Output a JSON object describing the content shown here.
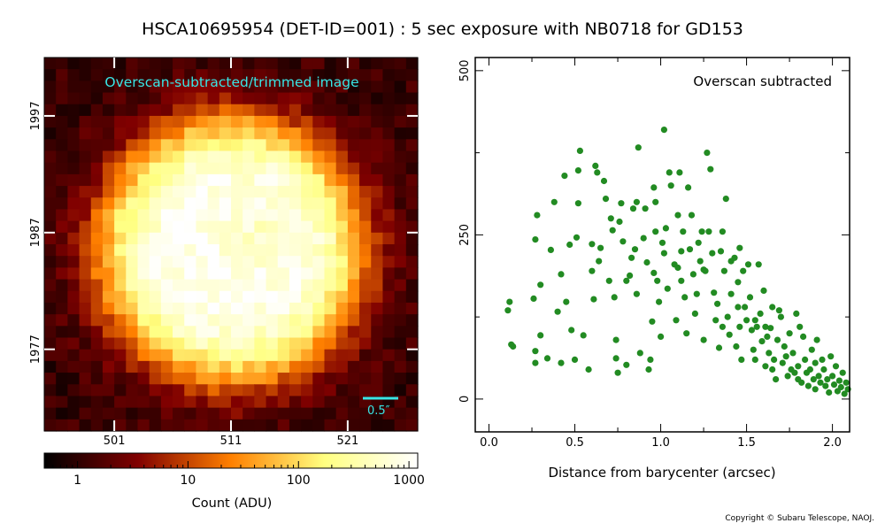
{
  "title": "HSCA10695954 (DET-ID=001) :  5 sec exposure with NB0718 for GD153",
  "copyright": "Copyright © Subaru Telescope, NAOJ.",
  "chart_data": [
    {
      "type": "heatmap",
      "annotation": "Overscan-subtracted/trimmed image",
      "annotation_color": "#39e6e6",
      "scale_bar_label": "0.5″",
      "x_ticks": [
        501,
        511,
        521
      ],
      "y_ticks": [
        1997,
        1987,
        1977
      ],
      "x_range": [
        495,
        527
      ],
      "y_range": [
        1970,
        2002
      ],
      "colormap": "afmhot",
      "colorbar": {
        "label": "Count (ADU)",
        "scale": "log",
        "ticks": [
          "1",
          "10",
          "100",
          "1000"
        ],
        "range": [
          0.5,
          1200
        ]
      }
    },
    {
      "type": "scatter",
      "annotation": "Overscan subtracted",
      "xlabel": "Distance from barycenter (arcsec)",
      "x_ticks": [
        "0.0",
        "0.5",
        "1.0",
        "1.5",
        "2.0"
      ],
      "y_ticks": [
        "0",
        "250",
        "500"
      ],
      "xlim": [
        -0.08,
        2.1
      ],
      "ylim": [
        -50,
        520
      ],
      "marker_color": "#228b22",
      "grid": false,
      "points": [
        [
          0.11,
          135
        ],
        [
          0.12,
          148
        ],
        [
          0.13,
          83
        ],
        [
          0.14,
          80
        ],
        [
          0.26,
          153
        ],
        [
          0.27,
          243
        ],
        [
          0.28,
          280
        ],
        [
          0.27,
          73
        ],
        [
          0.27,
          55
        ],
        [
          0.3,
          174
        ],
        [
          0.3,
          97
        ],
        [
          0.34,
          62
        ],
        [
          0.36,
          227
        ],
        [
          0.38,
          300
        ],
        [
          0.4,
          133
        ],
        [
          0.42,
          190
        ],
        [
          0.42,
          55
        ],
        [
          0.44,
          340
        ],
        [
          0.45,
          148
        ],
        [
          0.47,
          235
        ],
        [
          0.48,
          105
        ],
        [
          0.5,
          60
        ],
        [
          0.51,
          246
        ],
        [
          0.52,
          298
        ],
        [
          0.52,
          348
        ],
        [
          0.53,
          378
        ],
        [
          0.55,
          97
        ],
        [
          0.58,
          45
        ],
        [
          0.6,
          236
        ],
        [
          0.6,
          195
        ],
        [
          0.61,
          152
        ],
        [
          0.62,
          355
        ],
        [
          0.63,
          345
        ],
        [
          0.64,
          210
        ],
        [
          0.65,
          230
        ],
        [
          0.67,
          332
        ],
        [
          0.68,
          305
        ],
        [
          0.7,
          180
        ],
        [
          0.71,
          275
        ],
        [
          0.72,
          257
        ],
        [
          0.73,
          155
        ],
        [
          0.74,
          90
        ],
        [
          0.74,
          62
        ],
        [
          0.75,
          40
        ],
        [
          0.76,
          270
        ],
        [
          0.77,
          298
        ],
        [
          0.78,
          240
        ],
        [
          0.8,
          52
        ],
        [
          0.8,
          180
        ],
        [
          0.82,
          188
        ],
        [
          0.83,
          215
        ],
        [
          0.84,
          290
        ],
        [
          0.85,
          228
        ],
        [
          0.86,
          300
        ],
        [
          0.86,
          160
        ],
        [
          0.87,
          383
        ],
        [
          0.88,
          70
        ],
        [
          0.9,
          245
        ],
        [
          0.91,
          290
        ],
        [
          0.92,
          208
        ],
        [
          0.93,
          45
        ],
        [
          0.94,
          60
        ],
        [
          0.95,
          118
        ],
        [
          0.96,
          322
        ],
        [
          0.96,
          192
        ],
        [
          0.97,
          255
        ],
        [
          0.97,
          300
        ],
        [
          0.98,
          180
        ],
        [
          0.99,
          148
        ],
        [
          1.0,
          95
        ],
        [
          1.01,
          238
        ],
        [
          1.02,
          222
        ],
        [
          1.02,
          410
        ],
        [
          1.03,
          260
        ],
        [
          1.04,
          168
        ],
        [
          1.05,
          345
        ],
        [
          1.06,
          325
        ],
        [
          1.08,
          205
        ],
        [
          1.09,
          120
        ],
        [
          1.1,
          200
        ],
        [
          1.1,
          280
        ],
        [
          1.11,
          345
        ],
        [
          1.12,
          225
        ],
        [
          1.12,
          180
        ],
        [
          1.13,
          255
        ],
        [
          1.14,
          155
        ],
        [
          1.15,
          100
        ],
        [
          1.16,
          322
        ],
        [
          1.17,
          228
        ],
        [
          1.18,
          280
        ],
        [
          1.19,
          190
        ],
        [
          1.2,
          130
        ],
        [
          1.21,
          160
        ],
        [
          1.22,
          238
        ],
        [
          1.23,
          210
        ],
        [
          1.24,
          255
        ],
        [
          1.25,
          197
        ],
        [
          1.25,
          90
        ],
        [
          1.26,
          195
        ],
        [
          1.27,
          375
        ],
        [
          1.28,
          255
        ],
        [
          1.29,
          350
        ],
        [
          1.3,
          222
        ],
        [
          1.31,
          162
        ],
        [
          1.32,
          120
        ],
        [
          1.33,
          145
        ],
        [
          1.34,
          78
        ],
        [
          1.35,
          225
        ],
        [
          1.36,
          255
        ],
        [
          1.36,
          110
        ],
        [
          1.37,
          195
        ],
        [
          1.38,
          305
        ],
        [
          1.39,
          125
        ],
        [
          1.4,
          98
        ],
        [
          1.41,
          210
        ],
        [
          1.41,
          160
        ],
        [
          1.43,
          215
        ],
        [
          1.44,
          80
        ],
        [
          1.45,
          178
        ],
        [
          1.45,
          140
        ],
        [
          1.46,
          110
        ],
        [
          1.46,
          230
        ],
        [
          1.47,
          60
        ],
        [
          1.48,
          195
        ],
        [
          1.49,
          140
        ],
        [
          1.5,
          120
        ],
        [
          1.51,
          205
        ],
        [
          1.52,
          155
        ],
        [
          1.53,
          105
        ],
        [
          1.54,
          75
        ],
        [
          1.55,
          60
        ],
        [
          1.55,
          120
        ],
        [
          1.56,
          110
        ],
        [
          1.57,
          205
        ],
        [
          1.58,
          130
        ],
        [
          1.59,
          88
        ],
        [
          1.6,
          165
        ],
        [
          1.61,
          50
        ],
        [
          1.61,
          110
        ],
        [
          1.62,
          95
        ],
        [
          1.63,
          70
        ],
        [
          1.64,
          108
        ],
        [
          1.65,
          140
        ],
        [
          1.65,
          45
        ],
        [
          1.66,
          60
        ],
        [
          1.67,
          30
        ],
        [
          1.68,
          90
        ],
        [
          1.69,
          135
        ],
        [
          1.7,
          125
        ],
        [
          1.71,
          55
        ],
        [
          1.72,
          80
        ],
        [
          1.73,
          65
        ],
        [
          1.74,
          35
        ],
        [
          1.75,
          100
        ],
        [
          1.76,
          45
        ],
        [
          1.77,
          70
        ],
        [
          1.78,
          40
        ],
        [
          1.79,
          130
        ],
        [
          1.8,
          30
        ],
        [
          1.8,
          50
        ],
        [
          1.81,
          110
        ],
        [
          1.82,
          25
        ],
        [
          1.83,
          95
        ],
        [
          1.84,
          60
        ],
        [
          1.85,
          40
        ],
        [
          1.86,
          20
        ],
        [
          1.87,
          45
        ],
        [
          1.88,
          75
        ],
        [
          1.89,
          30
        ],
        [
          1.9,
          55
        ],
        [
          1.9,
          15
        ],
        [
          1.91,
          90
        ],
        [
          1.92,
          35
        ],
        [
          1.93,
          25
        ],
        [
          1.94,
          60
        ],
        [
          1.95,
          45
        ],
        [
          1.96,
          20
        ],
        [
          1.97,
          30
        ],
        [
          1.98,
          10
        ],
        [
          1.99,
          65
        ],
        [
          2.0,
          35
        ],
        [
          2.01,
          22
        ],
        [
          2.02,
          50
        ],
        [
          2.03,
          12
        ],
        [
          2.04,
          28
        ],
        [
          2.05,
          18
        ],
        [
          2.06,
          40
        ],
        [
          2.07,
          8
        ],
        [
          2.08,
          25
        ],
        [
          2.09,
          15
        ]
      ]
    }
  ]
}
